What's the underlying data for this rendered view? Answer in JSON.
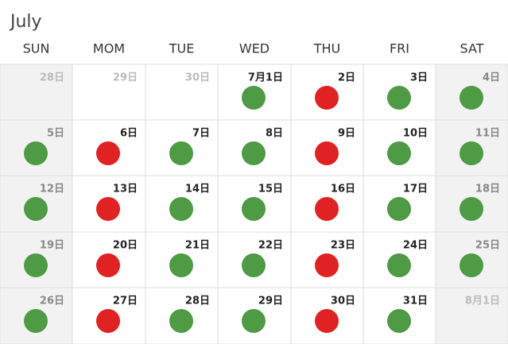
{
  "header": {
    "title": "July"
  },
  "weekdays": [
    "SUN",
    "MOM",
    "TUE",
    "WED",
    "THU",
    "FRI",
    "SAT"
  ],
  "weekend_background": "#f2f2f2",
  "weeks": [
    [
      {
        "label": "28日",
        "label_color": "#bbbbbb",
        "dot": null
      },
      {
        "label": "29日",
        "label_color": "#bbbbbb",
        "dot": null
      },
      {
        "label": "30日",
        "label_color": "#bbbbbb",
        "dot": null
      },
      {
        "label": "7月1日",
        "label_color": "#222222",
        "dot": "#4e9a45"
      },
      {
        "label": "2日",
        "label_color": "#222222",
        "dot": "#e02222"
      },
      {
        "label": "3日",
        "label_color": "#222222",
        "dot": "#4e9a45"
      },
      {
        "label": "4日",
        "label_color": "#888888",
        "dot": "#4e9a45"
      }
    ],
    [
      {
        "label": "5日",
        "label_color": "#888888",
        "dot": "#4e9a45"
      },
      {
        "label": "6日",
        "label_color": "#222222",
        "dot": "#e02222"
      },
      {
        "label": "7日",
        "label_color": "#222222",
        "dot": "#4e9a45"
      },
      {
        "label": "8日",
        "label_color": "#222222",
        "dot": "#4e9a45"
      },
      {
        "label": "9日",
        "label_color": "#222222",
        "dot": "#e02222"
      },
      {
        "label": "10日",
        "label_color": "#222222",
        "dot": "#4e9a45"
      },
      {
        "label": "11日",
        "label_color": "#888888",
        "dot": "#4e9a45"
      }
    ],
    [
      {
        "label": "12日",
        "label_color": "#888888",
        "dot": "#4e9a45"
      },
      {
        "label": "13日",
        "label_color": "#222222",
        "dot": "#e02222"
      },
      {
        "label": "14日",
        "label_color": "#222222",
        "dot": "#4e9a45"
      },
      {
        "label": "15日",
        "label_color": "#222222",
        "dot": "#4e9a45"
      },
      {
        "label": "16日",
        "label_color": "#222222",
        "dot": "#e02222"
      },
      {
        "label": "17日",
        "label_color": "#222222",
        "dot": "#4e9a45"
      },
      {
        "label": "18日",
        "label_color": "#888888",
        "dot": "#4e9a45"
      }
    ],
    [
      {
        "label": "19日",
        "label_color": "#888888",
        "dot": "#4e9a45"
      },
      {
        "label": "20日",
        "label_color": "#222222",
        "dot": "#e02222"
      },
      {
        "label": "21日",
        "label_color": "#222222",
        "dot": "#4e9a45"
      },
      {
        "label": "22日",
        "label_color": "#222222",
        "dot": "#4e9a45"
      },
      {
        "label": "23日",
        "label_color": "#222222",
        "dot": "#e02222"
      },
      {
        "label": "24日",
        "label_color": "#222222",
        "dot": "#4e9a45"
      },
      {
        "label": "25日",
        "label_color": "#888888",
        "dot": "#4e9a45"
      }
    ],
    [
      {
        "label": "26日",
        "label_color": "#888888",
        "dot": "#4e9a45"
      },
      {
        "label": "27日",
        "label_color": "#222222",
        "dot": "#e02222"
      },
      {
        "label": "28日",
        "label_color": "#222222",
        "dot": "#4e9a45"
      },
      {
        "label": "29日",
        "label_color": "#222222",
        "dot": "#4e9a45"
      },
      {
        "label": "30日",
        "label_color": "#222222",
        "dot": "#e02222"
      },
      {
        "label": "31日",
        "label_color": "#222222",
        "dot": "#4e9a45"
      },
      {
        "label": "8月1日",
        "label_color": "#bbbbbb",
        "dot": null
      }
    ]
  ]
}
